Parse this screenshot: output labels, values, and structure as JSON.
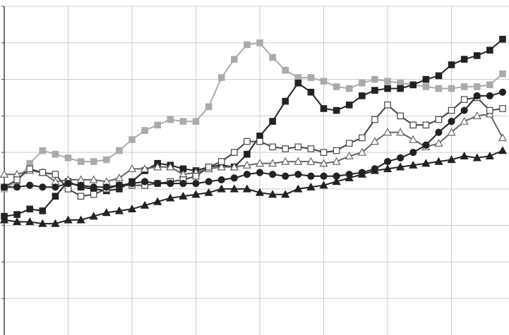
{
  "chart_data": {
    "type": "line",
    "title": "",
    "xlabel": "",
    "ylabel": "",
    "x": [
      0,
      1,
      2,
      3,
      4,
      5,
      6,
      7,
      8,
      9,
      10,
      11,
      12,
      13,
      14,
      15,
      16,
      17,
      18,
      19,
      20,
      21,
      22,
      23,
      24,
      25,
      26,
      27,
      28,
      29,
      30,
      31,
      32,
      33,
      34,
      35,
      36,
      37,
      38,
      39
    ],
    "xlim": [
      0,
      39.5
    ],
    "ylim": [
      0,
      9
    ],
    "grid": true,
    "legend": "none",
    "series": [
      {
        "color": "#aaaaaa",
        "marker": "square-filled",
        "values": [
          4.0,
          4.2,
          4.7,
          5.05,
          4.95,
          4.85,
          4.75,
          4.75,
          4.8,
          5.05,
          5.35,
          5.6,
          5.75,
          5.9,
          5.85,
          5.85,
          6.25,
          7.05,
          7.55,
          7.95,
          8.0,
          7.6,
          7.25,
          7.05,
          7.05,
          6.95,
          6.8,
          6.75,
          6.9,
          7.0,
          6.95,
          6.9,
          6.85,
          6.8,
          6.75,
          6.75,
          6.8,
          6.8,
          6.85,
          7.15
        ]
      },
      {
        "color": "#222222",
        "marker": "square-filled",
        "values": [
          3.25,
          3.3,
          3.45,
          3.4,
          3.8,
          4.2,
          4.05,
          4.0,
          3.95,
          4.0,
          4.2,
          4.5,
          4.7,
          4.65,
          4.55,
          4.5,
          4.6,
          4.65,
          4.6,
          4.95,
          5.45,
          5.85,
          6.4,
          6.9,
          6.65,
          6.2,
          6.15,
          6.3,
          6.55,
          6.7,
          6.75,
          6.75,
          6.85,
          7.0,
          7.1,
          7.4,
          7.55,
          7.65,
          7.8,
          8.1
        ]
      },
      {
        "color": "#666666",
        "marker": "triangle-open",
        "values": [
          4.4,
          4.4,
          4.5,
          4.45,
          4.2,
          4.25,
          4.25,
          4.25,
          4.2,
          4.3,
          4.55,
          4.55,
          4.6,
          4.6,
          4.4,
          4.45,
          4.55,
          4.6,
          4.6,
          4.65,
          4.7,
          4.7,
          4.75,
          4.75,
          4.75,
          4.7,
          4.75,
          4.9,
          5.0,
          5.3,
          5.55,
          5.55,
          5.35,
          5.15,
          5.25,
          5.55,
          5.85,
          6.0,
          6.05,
          5.4
        ]
      },
      {
        "color": "#444444",
        "marker": "square-open",
        "values": [
          4.05,
          4.25,
          4.55,
          4.45,
          4.4,
          4.0,
          3.8,
          3.85,
          4.0,
          4.1,
          4.1,
          4.1,
          4.15,
          4.2,
          4.25,
          4.35,
          4.6,
          4.75,
          5.0,
          5.3,
          5.3,
          5.15,
          5.1,
          5.15,
          5.1,
          5.0,
          5.05,
          5.25,
          5.4,
          5.9,
          6.3,
          6.0,
          5.75,
          5.75,
          5.9,
          6.15,
          6.45,
          6.5,
          6.15,
          6.2
        ]
      },
      {
        "color": "#222222",
        "marker": "circle-filled",
        "values": [
          4.05,
          4.05,
          4.1,
          4.05,
          4.05,
          4.15,
          4.1,
          4.05,
          4.05,
          4.1,
          4.15,
          4.2,
          4.15,
          4.15,
          4.15,
          4.15,
          4.2,
          4.25,
          4.3,
          4.4,
          4.45,
          4.4,
          4.35,
          4.4,
          4.35,
          4.35,
          4.35,
          4.4,
          4.45,
          4.55,
          4.75,
          4.85,
          5.0,
          5.2,
          5.55,
          5.85,
          6.15,
          6.55,
          6.55,
          6.65
        ]
      },
      {
        "color": "#222222",
        "marker": "triangle-filled",
        "values": [
          3.15,
          3.1,
          3.1,
          3.05,
          3.05,
          3.15,
          3.15,
          3.25,
          3.35,
          3.4,
          3.45,
          3.55,
          3.65,
          3.75,
          3.8,
          3.85,
          3.9,
          4.0,
          4.0,
          4.0,
          3.9,
          3.85,
          3.85,
          4.0,
          4.05,
          4.1,
          4.2,
          4.3,
          4.4,
          4.5,
          4.55,
          4.6,
          4.65,
          4.7,
          4.75,
          4.8,
          4.9,
          4.85,
          4.9,
          5.05
        ]
      }
    ]
  }
}
